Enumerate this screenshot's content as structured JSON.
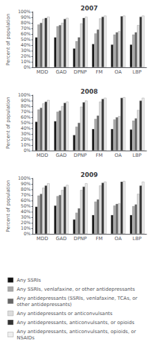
{
  "chart_data": [
    {
      "type": "bar",
      "title": "2007",
      "ylabel": "Percent of population",
      "categories": [
        "MDD",
        "GAD",
        "DPNP",
        "FM",
        "OA",
        "LBP"
      ],
      "series": [
        {
          "name": "Any SSRIs",
          "color": "#111111",
          "values": [
            54,
            54,
            34,
            42,
            41,
            41
          ]
        },
        {
          "name": "Any SSRIs, venlafaxine, or other antidepressants",
          "color": "#aaaaaa",
          "values": [
            77,
            74,
            47,
            61,
            59,
            59
          ]
        },
        {
          "name": "Any antidepressants (SSRIs, venlafaxine, TCAs, or other antidepressants)",
          "color": "#666666",
          "values": [
            80,
            76,
            54,
            68,
            63,
            63
          ]
        },
        {
          "name": "Any antidepressants or anticonvulsants",
          "color": "#dddddd",
          "values": [
            87,
            80,
            79,
            88,
            65,
            76
          ]
        },
        {
          "name": "Any antidepressants, anticonvulsants, or opioids",
          "color": "#333333",
          "values": [
            89,
            87,
            89,
            91,
            92,
            91
          ]
        },
        {
          "name": "Any antidepressants, anticonvulsants, opioids, or NSAIDs",
          "color": "#eeeeee",
          "values": [
            91,
            89,
            91,
            93,
            93,
            93
          ]
        }
      ],
      "ylim": [
        0,
        100
      ],
      "yticks": [
        {
          "value": 0,
          "label": "0%"
        },
        {
          "value": 10,
          "label": "10%"
        },
        {
          "value": 20,
          "label": "20%"
        },
        {
          "value": 30,
          "label": "30%"
        },
        {
          "value": 40,
          "label": "40%"
        },
        {
          "value": 50,
          "label": "50%"
        },
        {
          "value": 60,
          "label": "60%"
        },
        {
          "value": 70,
          "label": "70%"
        },
        {
          "value": 80,
          "label": "80%"
        },
        {
          "value": 90,
          "label": "90%"
        },
        {
          "value": 100,
          "label": "100%"
        }
      ],
      "grid": false,
      "legend": "lower left"
    },
    {
      "type": "bar",
      "title": "2008",
      "ylabel": "Percent of population",
      "categories": [
        "MDD",
        "GAD",
        "DPNP",
        "FM",
        "OA",
        "LBP"
      ],
      "series": [
        {
          "name": "Any SSRIs",
          "color": "#111111",
          "values": [
            52,
            53,
            28,
            39,
            39,
            38
          ]
        },
        {
          "name": "Any SSRIs, venlafaxine, or other antidepressants",
          "color": "#aaaaaa",
          "values": [
            74,
            70,
            43,
            57,
            56,
            54
          ]
        },
        {
          "name": "Any antidepressants (SSRIs, venlafaxine, TCAs, or other antidepressants)",
          "color": "#666666",
          "values": [
            77,
            72,
            50,
            63,
            60,
            58
          ]
        },
        {
          "name": "Any antidepressants or anticonvulsants",
          "color": "#dddddd",
          "values": [
            85,
            80,
            79,
            88,
            62,
            73
          ]
        },
        {
          "name": "Any antidepressants, anticonvulsants, or opioids",
          "color": "#333333",
          "values": [
            88,
            86,
            87,
            93,
            95,
            90
          ]
        },
        {
          "name": "Any antidepressants, anticonvulsants, opioids, or NSAIDs",
          "color": "#eeeeee",
          "values": [
            91,
            88,
            90,
            95,
            96,
            95
          ]
        }
      ],
      "ylim": [
        0,
        100
      ],
      "yticks": [
        {
          "value": 0,
          "label": "0%"
        },
        {
          "value": 10,
          "label": "10%"
        },
        {
          "value": 20,
          "label": "20%"
        },
        {
          "value": 30,
          "label": "30%"
        },
        {
          "value": 40,
          "label": "40%"
        },
        {
          "value": 50,
          "label": "50%"
        },
        {
          "value": 60,
          "label": "60%"
        },
        {
          "value": 70,
          "label": "70%"
        },
        {
          "value": 80,
          "label": "80%"
        },
        {
          "value": 90,
          "label": "90%"
        },
        {
          "value": 100,
          "label": "100%"
        }
      ],
      "grid": false
    },
    {
      "type": "bar",
      "title": "2009",
      "ylabel": "Percent of population",
      "categories": [
        "MDD",
        "GAD",
        "DPNP",
        "FM",
        "OA",
        "LBP"
      ],
      "series": [
        {
          "name": "Any SSRIs",
          "color": "#111111",
          "values": [
            49,
            51,
            26,
            34,
            34,
            34
          ]
        },
        {
          "name": "Any SSRIs, venlafaxine, or other antidepressants",
          "color": "#aaaaaa",
          "values": [
            69,
            68,
            38,
            58,
            51,
            50
          ]
        },
        {
          "name": "Any antidepressants (SSRIs, venlafaxine, TCAs, or other antidepressants)",
          "color": "#666666",
          "values": [
            72,
            70,
            46,
            62,
            54,
            53
          ]
        },
        {
          "name": "Any antidepressants or anticonvulsants",
          "color": "#dddddd",
          "values": [
            83,
            79,
            79,
            87,
            55,
            72
          ]
        },
        {
          "name": "Any antidepressants, anticonvulsants, or opioids",
          "color": "#333333",
          "values": [
            87,
            85,
            85,
            92,
            94,
            87
          ]
        },
        {
          "name": "Any antidepressants, anticonvulsants, opioids, or NSAIDs",
          "color": "#eeeeee",
          "values": [
            91,
            88,
            91,
            94,
            95,
            94
          ]
        }
      ],
      "ylim": [
        0,
        100
      ],
      "yticks": [
        {
          "value": 0,
          "label": "0%"
        },
        {
          "value": 10,
          "label": "10%"
        },
        {
          "value": 20,
          "label": "20%"
        },
        {
          "value": 30,
          "label": "30%"
        },
        {
          "value": 40,
          "label": "40%"
        },
        {
          "value": 50,
          "label": "50%"
        },
        {
          "value": 60,
          "label": "60%"
        },
        {
          "value": 70,
          "label": "70%"
        },
        {
          "value": 80,
          "label": "80%"
        },
        {
          "value": 90,
          "label": "90%"
        },
        {
          "value": 100,
          "label": "100%"
        }
      ],
      "grid": false
    }
  ]
}
